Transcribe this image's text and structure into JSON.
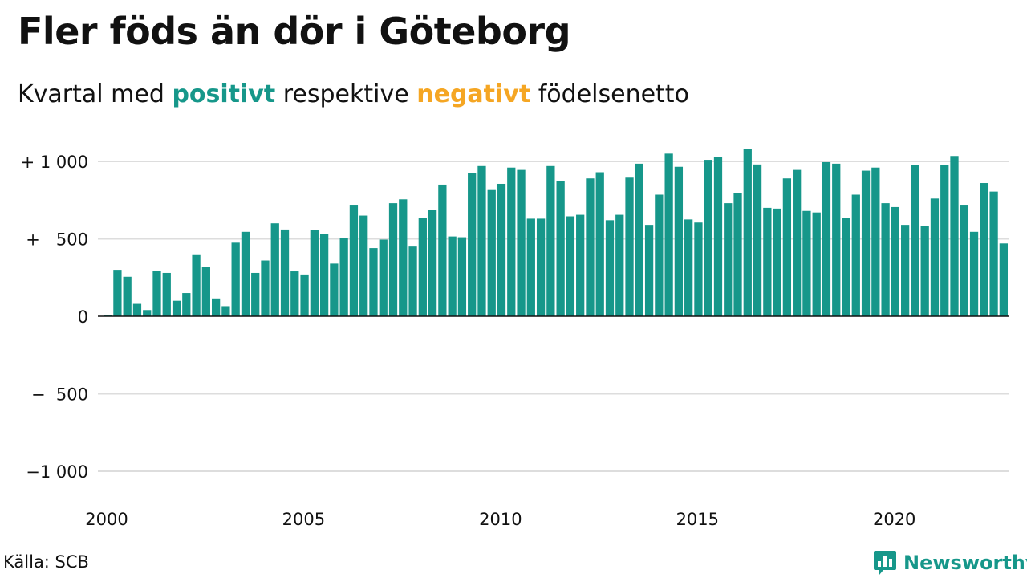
{
  "title": "Fler föds än dör i Göteborg",
  "subtitle": {
    "prefix": "Kvartal med",
    "positive": "positivt",
    "middle": "respektive",
    "negative": "negativt",
    "suffix": "födelsenetto"
  },
  "colors": {
    "positive": "#16978a",
    "negative": "#f5a623",
    "grid": "#dddddd",
    "text": "#111111"
  },
  "source": "Källa: SCB",
  "brand": {
    "name": "Newsworthy",
    "icon": "bar-chart-bubble-icon",
    "color": "#16978a"
  },
  "chart_data": {
    "type": "bar",
    "title": "Fler föds än dör i Göteborg",
    "xlabel": "",
    "ylabel": "",
    "ylim": [
      -1100,
      1100
    ],
    "yticks": [
      {
        "value": 1000,
        "label": "+ 1 000"
      },
      {
        "value": 500,
        "label": "+   500"
      },
      {
        "value": 0,
        "label": "0"
      },
      {
        "value": -500,
        "label": "−  500"
      },
      {
        "value": -1000,
        "label": "−1 000"
      }
    ],
    "xticks": [
      {
        "year": 2000,
        "label": "2000"
      },
      {
        "year": 2005,
        "label": "2005"
      },
      {
        "year": 2010,
        "label": "2010"
      },
      {
        "year": 2015,
        "label": "2015"
      },
      {
        "year": 2020,
        "label": "2020"
      }
    ],
    "start_year": 2000,
    "start_quarter": 1,
    "grid": true,
    "legend": "none",
    "values": [
      10,
      300,
      255,
      80,
      40,
      295,
      280,
      100,
      150,
      395,
      320,
      115,
      65,
      475,
      545,
      280,
      360,
      600,
      560,
      290,
      270,
      555,
      530,
      340,
      505,
      720,
      650,
      440,
      495,
      730,
      755,
      450,
      635,
      685,
      850,
      515,
      510,
      925,
      970,
      815,
      855,
      960,
      945,
      630,
      630,
      970,
      875,
      645,
      655,
      890,
      930,
      620,
      655,
      895,
      985,
      590,
      785,
      1050,
      965,
      625,
      605,
      1010,
      1030,
      730,
      795,
      1080,
      980,
      700,
      695,
      890,
      945,
      680,
      670,
      995,
      985,
      635,
      785,
      940,
      960,
      730,
      705,
      590,
      975,
      585,
      760,
      975,
      1035,
      720,
      545,
      860,
      805,
      470
    ]
  }
}
